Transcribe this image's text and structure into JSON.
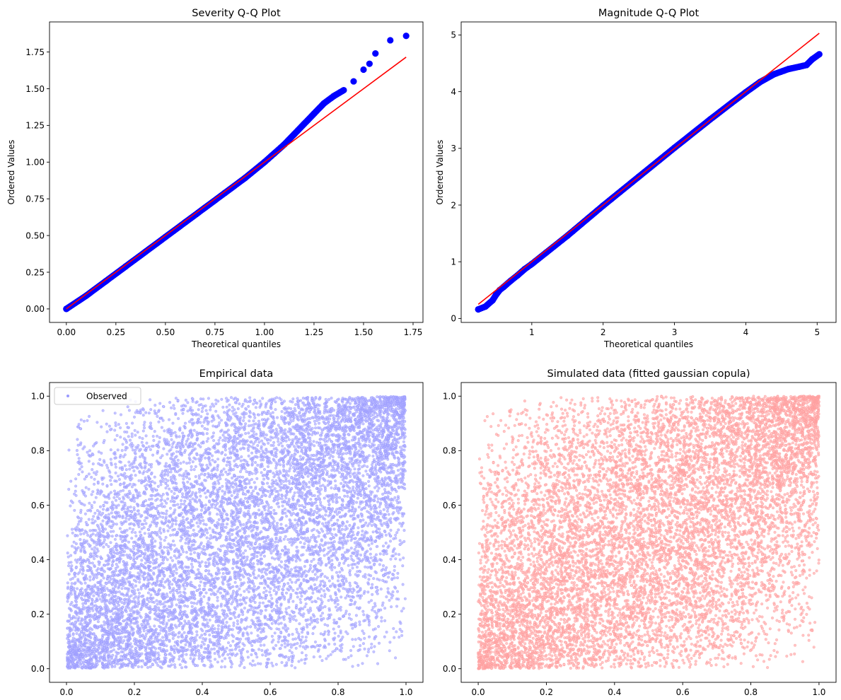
{
  "chart_data": [
    {
      "id": "severity",
      "type": "scatter",
      "title": "Severity Q-Q Plot",
      "xlabel": "Theoretical quantiles",
      "ylabel": "Ordered Values",
      "xlim": [
        -0.085,
        1.8
      ],
      "ylim": [
        -0.092,
        1.955
      ],
      "xticks": [
        0.0,
        0.25,
        0.5,
        0.75,
        1.0,
        1.25,
        1.5,
        1.75
      ],
      "xticklabels": [
        "0.00",
        "0.25",
        "0.50",
        "0.75",
        "1.00",
        "1.25",
        "1.50",
        "1.75"
      ],
      "yticks": [
        0.0,
        0.25,
        0.5,
        0.75,
        1.0,
        1.25,
        1.5,
        1.75
      ],
      "yticklabels": [
        "0.00",
        "0.25",
        "0.50",
        "0.75",
        "1.00",
        "1.25",
        "1.50",
        "1.75"
      ],
      "grid": false,
      "point_color": "#0000ff",
      "line_color": "#ff0000",
      "fit_line": {
        "x": [
          0.0,
          1.715
        ],
        "y": [
          0.0,
          1.715
        ]
      },
      "points": {
        "x": [
          0.0,
          0.1,
          0.2,
          0.3,
          0.4,
          0.5,
          0.6,
          0.7,
          0.8,
          0.9,
          1.0,
          1.05,
          1.1,
          1.15,
          1.2,
          1.25,
          1.3,
          1.35,
          1.4,
          1.45,
          1.5,
          1.53,
          1.56,
          1.635,
          1.715
        ],
        "y": [
          0.0,
          0.09,
          0.19,
          0.29,
          0.39,
          0.49,
          0.59,
          0.69,
          0.79,
          0.89,
          1.0,
          1.06,
          1.12,
          1.19,
          1.26,
          1.33,
          1.4,
          1.45,
          1.49,
          1.55,
          1.63,
          1.67,
          1.74,
          1.83,
          1.86
        ]
      }
    },
    {
      "id": "magnitude",
      "type": "scatter",
      "title": "Magnitude Q-Q Plot",
      "xlabel": "Theoretical quantiles",
      "ylabel": "Ordered Values",
      "xlim": [
        0.01,
        5.265
      ],
      "ylim": [
        -0.07,
        5.23
      ],
      "xticks": [
        1,
        2,
        3,
        4,
        5
      ],
      "xticklabels": [
        "1",
        "2",
        "3",
        "4",
        "5"
      ],
      "yticks": [
        0,
        1,
        2,
        3,
        4,
        5
      ],
      "yticklabels": [
        "0",
        "1",
        "2",
        "3",
        "4",
        "5"
      ],
      "grid": false,
      "point_color": "#0000ff",
      "line_color": "#ff0000",
      "fit_line": {
        "x": [
          0.25,
          5.03
        ],
        "y": [
          0.25,
          5.03
        ]
      },
      "points": {
        "x": [
          0.25,
          0.35,
          0.45,
          0.5,
          0.55,
          0.6,
          0.7,
          0.8,
          0.9,
          1.0,
          1.2,
          1.5,
          2.0,
          2.5,
          3.0,
          3.5,
          3.8,
          4.0,
          4.2,
          4.4,
          4.6,
          4.75,
          4.85,
          4.93,
          5.03
        ],
        "y": [
          0.16,
          0.21,
          0.32,
          0.42,
          0.5,
          0.55,
          0.66,
          0.76,
          0.87,
          0.96,
          1.16,
          1.46,
          1.99,
          2.5,
          3.01,
          3.51,
          3.8,
          3.99,
          4.17,
          4.31,
          4.4,
          4.44,
          4.47,
          4.57,
          4.66
        ]
      }
    },
    {
      "id": "empirical",
      "type": "scatter",
      "title": "Empirical data",
      "xlabel": "",
      "ylabel": "",
      "xlim": [
        -0.05,
        1.05
      ],
      "ylim": [
        -0.05,
        1.05
      ],
      "xticks": [
        0.0,
        0.2,
        0.4,
        0.6,
        0.8,
        1.0
      ],
      "xticklabels": [
        "0.0",
        "0.2",
        "0.4",
        "0.6",
        "0.8",
        "1.0"
      ],
      "yticks": [
        0.0,
        0.2,
        0.4,
        0.6,
        0.8,
        1.0
      ],
      "yticklabels": [
        "0.0",
        "0.2",
        "0.4",
        "0.6",
        "0.8",
        "1.0"
      ],
      "grid": false,
      "legend": {
        "entries": [
          "Observed"
        ],
        "placement": "upper-left"
      },
      "point_color": "#0000ff",
      "point_alpha": 0.22,
      "correlation": 0.5,
      "n_points": 10000,
      "series": [
        {
          "name": "Observed"
        }
      ]
    },
    {
      "id": "simulated",
      "type": "scatter",
      "title": "Simulated data (fitted gaussian copula)",
      "xlabel": "",
      "ylabel": "",
      "xlim": [
        -0.05,
        1.05
      ],
      "ylim": [
        -0.05,
        1.05
      ],
      "xticks": [
        0.0,
        0.2,
        0.4,
        0.6,
        0.8,
        1.0
      ],
      "xticklabels": [
        "0.0",
        "0.2",
        "0.4",
        "0.6",
        "0.8",
        "1.0"
      ],
      "yticks": [
        0.0,
        0.2,
        0.4,
        0.6,
        0.8,
        1.0
      ],
      "yticklabels": [
        "0.0",
        "0.2",
        "0.4",
        "0.6",
        "0.8",
        "1.0"
      ],
      "grid": false,
      "point_color": "#ff0000",
      "point_alpha": 0.22,
      "correlation": 0.5,
      "n_points": 10000
    }
  ]
}
